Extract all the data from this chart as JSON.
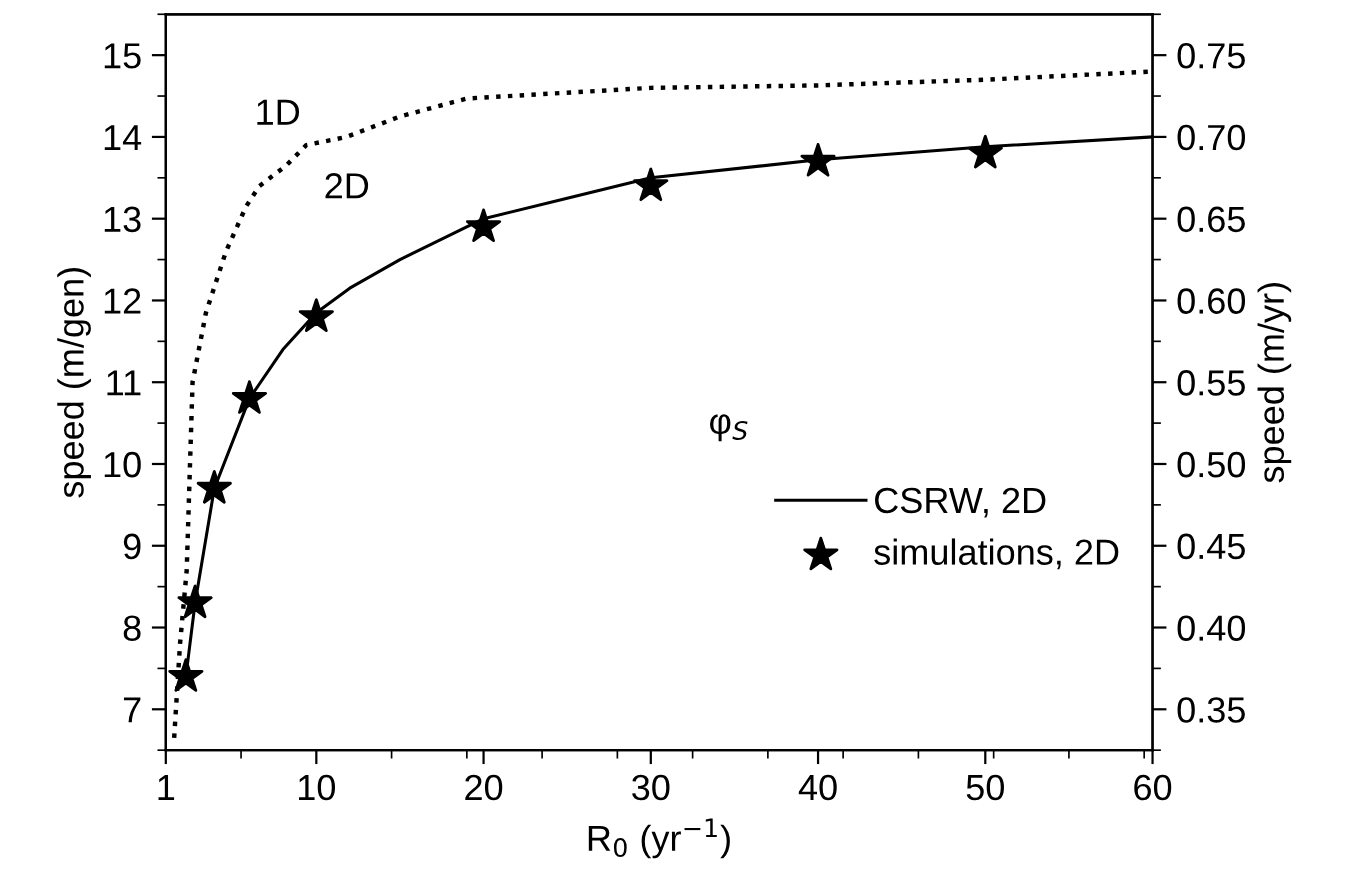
{
  "chart_data": {
    "type": "line",
    "xlabel": "R$_{0}$ (yr$^{−1}$)",
    "ylabel": "speed (m/gen)",
    "y2label": "speed (m/yr)",
    "xlim": [
      1,
      60
    ],
    "xticks": [
      1,
      10,
      20,
      30,
      40,
      50,
      60
    ],
    "ylim": [
      6.5,
      15.5
    ],
    "yticks": [
      7,
      8,
      9,
      10,
      11,
      12,
      13,
      14,
      15
    ],
    "y2lim": [
      0.325,
      0.775
    ],
    "y2ticks": [
      0.35,
      {
        "value": 0.4,
        "label": "0.40"
      },
      0.45,
      {
        "value": 0.5,
        "label": "0.50"
      },
      0.55,
      {
        "value": 0.6,
        "label": "0.60"
      },
      0.65,
      {
        "value": 0.7,
        "label": "0.70"
      },
      0.75
    ],
    "grid": false,
    "legend": "right",
    "series": [
      {
        "color": "#000000",
        "line_style": "dotted",
        "marker": "none",
        "x": [
          1.5,
          1.85,
          2.25,
          2.6,
          3.4,
          4.6,
          5.8,
          6.6,
          8.2,
          9.4,
          11.8,
          15,
          19,
          30,
          40,
          50,
          60
        ],
        "values": [
          6.65,
          7.8,
          8.7,
          11.0,
          11.85,
          12.6,
          13.15,
          13.4,
          13.65,
          13.9,
          14.0,
          14.25,
          14.47,
          14.6,
          14.63,
          14.7,
          14.8
        ]
      },
      {
        "name": "CSRW, 2D",
        "color": "#000000",
        "line_style": "solid",
        "marker": "none",
        "x": [
          2.2,
          2.75,
          3.9,
          6,
          8,
          10,
          12,
          15,
          20,
          25,
          30,
          40,
          50,
          60
        ],
        "values": [
          7.4,
          8.3,
          9.7,
          10.8,
          11.4,
          11.85,
          12.15,
          12.5,
          13.0,
          13.25,
          13.5,
          13.72,
          13.88,
          14.0
        ]
      },
      {
        "type": "scatter",
        "name": "simulations, 2D",
        "color": "#000000",
        "marker": "star",
        "x": [
          2.2,
          2.75,
          3.9,
          6,
          10,
          20,
          30,
          40,
          50
        ],
        "values": [
          7.4,
          8.3,
          9.7,
          10.8,
          11.8,
          12.9,
          13.4,
          13.7,
          13.8
        ]
      }
    ],
    "annotations": [
      "1D",
      "2D",
      "φ$_{S}$"
    ]
  }
}
